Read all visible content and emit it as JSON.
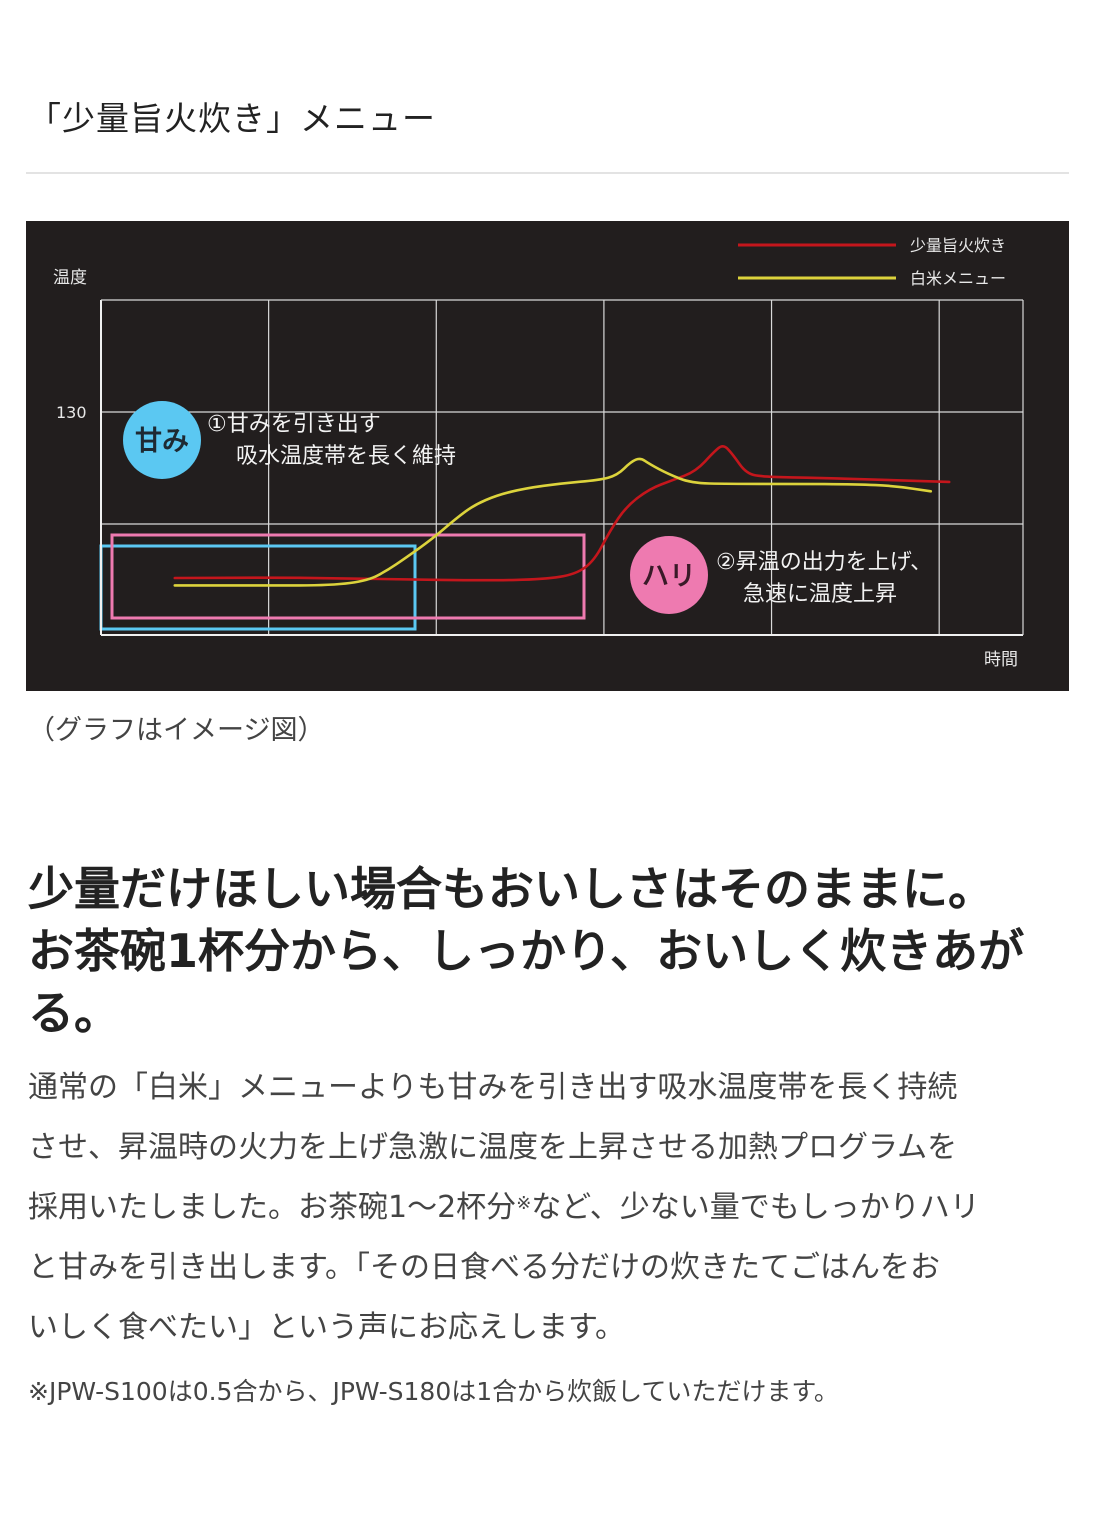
{
  "section_title": "「少量旨火炊き」メニュー",
  "chart_data": {
    "type": "line",
    "ylabel": "温度",
    "xlabel": "時間",
    "y_ticks": [
      "130"
    ],
    "legend_position": "top-right",
    "grid": true,
    "series": [
      {
        "name": "少量旨火炊き",
        "color": "#c4161c",
        "points": [
          [
            0.08,
            63
          ],
          [
            0.2,
            63.2
          ],
          [
            0.32,
            62.5
          ],
          [
            0.42,
            62
          ],
          [
            0.48,
            62.5
          ],
          [
            0.515,
            64.5
          ],
          [
            0.535,
            70
          ],
          [
            0.552,
            82
          ],
          [
            0.57,
            92
          ],
          [
            0.595,
            99
          ],
          [
            0.62,
            102.5
          ],
          [
            0.645,
            106
          ],
          [
            0.665,
            114
          ],
          [
            0.675,
            117
          ],
          [
            0.685,
            113
          ],
          [
            0.7,
            105
          ],
          [
            0.72,
            103.8
          ],
          [
            0.78,
            103.4
          ],
          [
            0.85,
            102.6
          ],
          [
            0.92,
            101.8
          ]
        ]
      },
      {
        "name": "白米メニュー",
        "color": "#dcd33c",
        "points": [
          [
            0.08,
            60
          ],
          [
            0.18,
            60
          ],
          [
            0.25,
            60
          ],
          [
            0.29,
            62
          ],
          [
            0.31,
            66
          ],
          [
            0.33,
            71
          ],
          [
            0.36,
            79
          ],
          [
            0.385,
            87
          ],
          [
            0.405,
            92.5
          ],
          [
            0.43,
            96.5
          ],
          [
            0.46,
            99.2
          ],
          [
            0.5,
            101.2
          ],
          [
            0.54,
            102.5
          ],
          [
            0.56,
            104.5
          ],
          [
            0.575,
            110
          ],
          [
            0.585,
            111.5
          ],
          [
            0.595,
            109
          ],
          [
            0.615,
            105
          ],
          [
            0.64,
            101.3
          ],
          [
            0.68,
            101
          ],
          [
            0.75,
            101
          ],
          [
            0.82,
            100.8
          ],
          [
            0.86,
            100.2
          ],
          [
            0.9,
            98
          ]
        ]
      }
    ],
    "annotations": [
      {
        "badge": "甘み",
        "badge_color": "#5bc8f2",
        "lines": [
          "①甘みを引き出す",
          "吸水温度帯を長く維持"
        ],
        "box_color": "#5bc8f2"
      },
      {
        "badge": "ハリ",
        "badge_color": "#ee7ab0",
        "lines": [
          "②昇温の出力を上げ、",
          "急速に温度上昇"
        ],
        "box_color": "#ee7ab0"
      }
    ]
  },
  "caption": "（グラフはイメージ図）",
  "headline_lines": [
    "少量だけほしい場合もおいしさはそのままに。",
    "お茶碗1杯分から、しっかり、おいしく炊きあが",
    "る。"
  ],
  "body_lines": [
    "通常の「白米」メニューよりも甘みを引き出す吸水温度帯を長く持続",
    "させ、昇温時の火力を上げ急激に温度を上昇させる加熱プログラムを",
    "採用いたしました。お茶碗1～2杯分",
    "など、少ない量でもしっかりハリ",
    "と甘みを引き出します。「その日食べる分だけの炊きたてごはんをお",
    "いしく食べたい」という声にお応えします。"
  ],
  "body_sup": "※",
  "footnote": "※JPW-S100は0.5合から、JPW-S180は1合から炊飯していただけます。"
}
